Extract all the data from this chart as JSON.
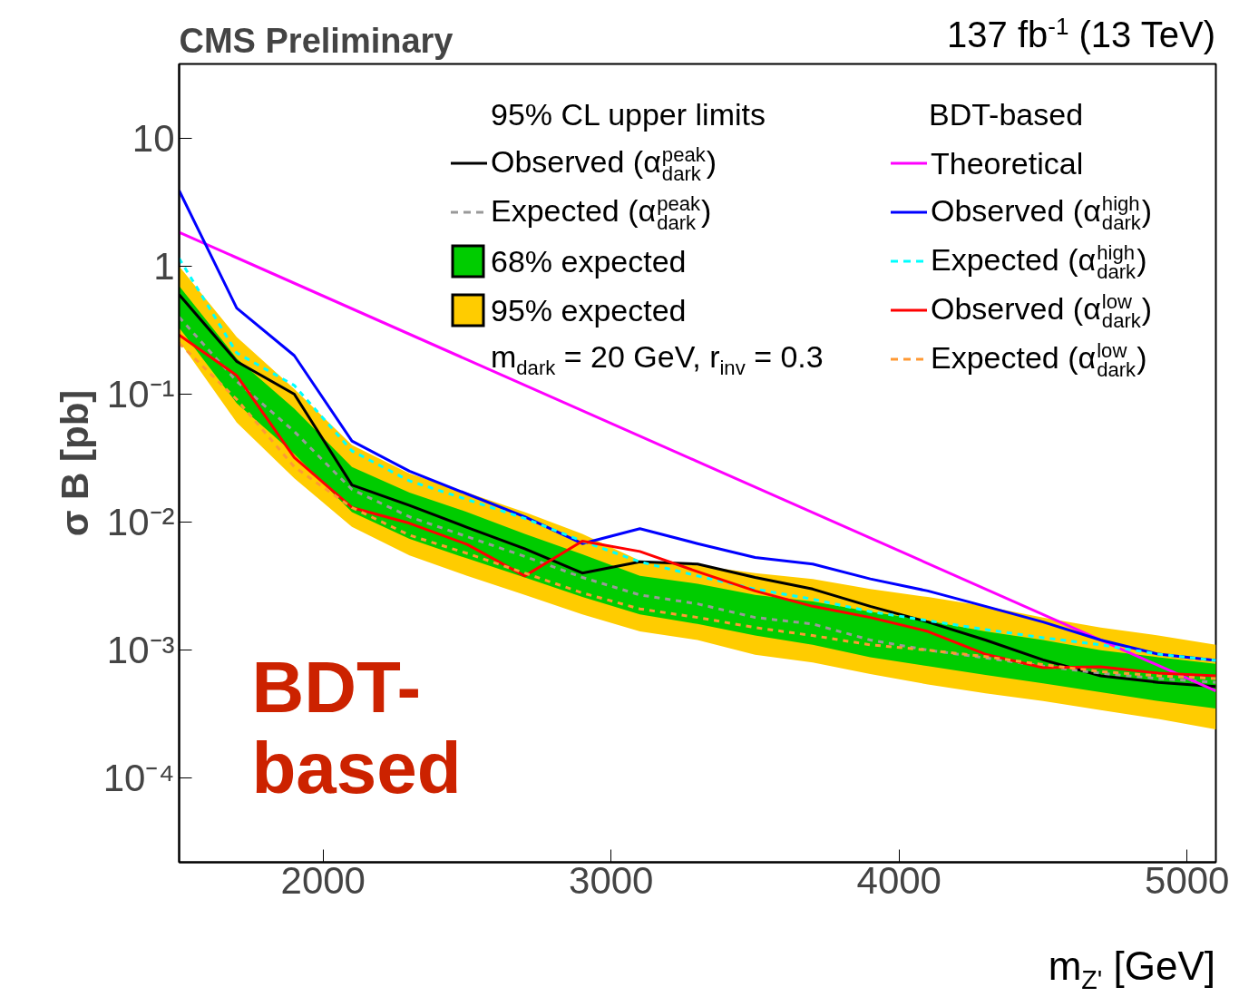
{
  "chart_data": {
    "type": "line",
    "title": "CMS Preliminary",
    "subtitle": "137 fb$^{-1}$ (13 TeV)",
    "xlabel": "m$_{Z'}$ [GeV]",
    "ylabel": "σ B [pb]",
    "legend_title": "95% CL upper limits",
    "annotations": [
      "BDT-based",
      "m$_{dark}$ = 20 GeV, r$_{inv}$ = 0.3",
      "BDT-based"
    ],
    "x": [
      1500,
      1700,
      1900,
      2100,
      2300,
      2500,
      2700,
      2900,
      3100,
      3300,
      3500,
      3700,
      3900,
      4100,
      4300,
      4500,
      4700,
      4900,
      5100
    ],
    "xlim": [
      1500,
      5100
    ],
    "xticks": [
      2000,
      3000,
      4000,
      5000
    ],
    "ylim": [
      2.2e-05,
      38
    ],
    "log": true,
    "grid": false,
    "legend": "top right",
    "yticks": [
      {
        "value": 0.0001,
        "label": "10⁻⁴"
      },
      {
        "value": 0.001,
        "label": "10⁻³"
      },
      {
        "value": 0.01,
        "label": "10⁻²"
      },
      {
        "value": 0.1,
        "label": "10⁻¹"
      },
      1,
      10
    ],
    "series": [
      {
        "name": "95% expected",
        "type": "area",
        "color": "#ffcc00",
        "lower": [
          0.26,
          0.06,
          0.022,
          0.0092,
          0.0055,
          0.0038,
          0.0027,
          0.0019,
          0.0014,
          0.0012,
          0.00092,
          0.0008,
          0.00065,
          0.00054,
          0.00046,
          0.0004,
          0.00034,
          0.00029,
          0.00024
        ],
        "values": [
          null,
          null,
          null,
          null,
          null,
          null,
          null,
          null,
          null,
          null,
          null,
          null,
          null,
          null,
          null,
          null,
          null,
          null,
          null
        ],
        "upper": [
          1.0,
          0.28,
          0.11,
          0.04,
          0.024,
          0.017,
          0.012,
          0.0081,
          0.005,
          0.0046,
          0.004,
          0.0036,
          0.003,
          0.0026,
          0.0022,
          0.0018,
          0.0015,
          0.0013,
          0.0011
        ]
      },
      {
        "name": "68% expected",
        "type": "area",
        "color": "#00cc00",
        "lower": [
          0.33,
          0.085,
          0.034,
          0.012,
          0.0074,
          0.0052,
          0.0037,
          0.0026,
          0.0019,
          0.0016,
          0.0013,
          0.0011,
          0.00088,
          0.00075,
          0.00064,
          0.00055,
          0.00047,
          0.0004,
          0.00035
        ],
        "values": [
          null,
          null,
          null,
          null,
          null,
          null,
          null,
          null,
          null,
          null,
          null,
          null,
          null,
          null,
          null,
          null,
          null,
          null,
          null
        ],
        "upper": [
          0.7,
          0.19,
          0.077,
          0.027,
          0.017,
          0.012,
          0.0081,
          0.0056,
          0.0038,
          0.0033,
          0.0027,
          0.0024,
          0.002,
          0.0017,
          0.0014,
          0.0012,
          0.001,
          0.00088,
          0.00078
        ]
      },
      {
        "name": "Observed (α$^{peak}$$_{dark}$)",
        "color": "#000000",
        "line_style": "solid",
        "values": [
          0.6,
          0.18,
          0.1,
          0.0195,
          0.0135,
          0.0091,
          0.0062,
          0.004,
          0.0049,
          0.0047,
          0.0037,
          0.003,
          0.0022,
          0.00166,
          0.0012,
          0.00084,
          0.00063,
          0.00056,
          0.00052
        ]
      },
      {
        "name": "Expected (α$^{peak}$$_{dark}$)",
        "color": "#999999",
        "line_style": "dashed",
        "values": [
          0.4,
          0.126,
          0.051,
          0.018,
          0.011,
          0.0077,
          0.0054,
          0.0037,
          0.0027,
          0.0023,
          0.0018,
          0.0016,
          0.0012,
          0.001,
          0.00087,
          0.00075,
          0.00066,
          0.0006,
          0.00056
        ]
      },
      {
        "name": "Theoretical",
        "color": "#ff00ff",
        "line_style": "solid",
        "x": [
          1500,
          5100
        ],
        "values": [
          1.84,
          0.00048
        ]
      },
      {
        "name": "Observed (α$^{high}$$_{dark}$)",
        "color": "#0000ff",
        "line_style": "solid",
        "values": [
          3.9,
          0.47,
          0.2,
          0.043,
          0.025,
          0.0166,
          0.011,
          0.0068,
          0.0089,
          0.0068,
          0.0053,
          0.0047,
          0.0036,
          0.0029,
          0.0022,
          0.00166,
          0.0012,
          0.00093,
          0.00083
        ]
      },
      {
        "name": "Expected (α$^{high}$$_{dark}$)",
        "color": "#00ffff",
        "line_style": "dashed",
        "values": [
          1.15,
          0.21,
          0.117,
          0.036,
          0.021,
          0.015,
          0.0107,
          0.0071,
          0.0049,
          0.0038,
          0.003,
          0.0025,
          0.002,
          0.0017,
          0.00145,
          0.00125,
          0.0011,
          0.00093,
          0.00083
        ]
      },
      {
        "name": "Observed (α$^{low}$$_{dark}$)",
        "color": "#ff0000",
        "line_style": "solid",
        "values": [
          0.29,
          0.14,
          0.032,
          0.013,
          0.0098,
          0.0067,
          0.0038,
          0.0071,
          0.0059,
          0.0041,
          0.0029,
          0.0022,
          0.0018,
          0.0014,
          0.00093,
          0.00073,
          0.00074,
          0.00066,
          0.00063
        ]
      },
      {
        "name": "Expected (α$^{low}$$_{dark}$)",
        "color": "#ff9933",
        "line_style": "dashed",
        "values": [
          0.25,
          0.091,
          0.027,
          0.013,
          0.0079,
          0.0057,
          0.004,
          0.0028,
          0.0021,
          0.0018,
          0.0015,
          0.0013,
          0.0011,
          0.001,
          0.00089,
          0.00077,
          0.00068,
          0.00063,
          0.0006
        ]
      }
    ]
  }
}
